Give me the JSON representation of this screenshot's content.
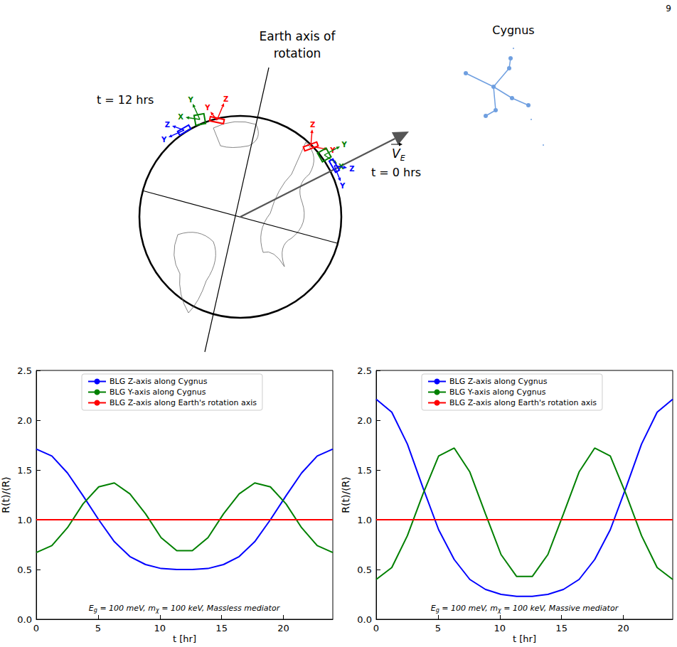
{
  "page_number": "9",
  "diagram": {
    "time_labels": [
      "t = 12 hrs",
      "t = 0 hrs"
    ],
    "axis_label": "Earth axis of rotation",
    "constellation": "Cygnus",
    "velocity_label": "VE",
    "frames": [
      {
        "color": "#ff0000",
        "axes": [
          "Z",
          "Y"
        ]
      },
      {
        "color": "#008000",
        "axes": [
          "Y",
          "X"
        ]
      },
      {
        "color": "#0000ff",
        "axes": [
          "Z",
          "Y"
        ]
      }
    ]
  },
  "chart_data": [
    {
      "type": "line",
      "annotation": "Eg = 100 meV, mχ = 100 keV, Massless mediator",
      "xlabel": "t [hr]",
      "ylabel": "R(t)/⟨R⟩",
      "xlim": [
        0,
        24
      ],
      "xticks": [
        0,
        5,
        10,
        15,
        20
      ],
      "ylim": [
        0,
        2.5
      ],
      "yticks": [
        {
          "value": 0,
          "label": "0.0"
        },
        0.5,
        {
          "value": 1,
          "label": "1.0"
        },
        1.5,
        {
          "value": 2,
          "label": "2.0"
        },
        2.5
      ],
      "legend": "upper center",
      "grid": false,
      "x": [
        0,
        1.263,
        2.526,
        3.789,
        5.053,
        6.316,
        7.579,
        8.842,
        10.105,
        11.368,
        12.632,
        13.895,
        15.158,
        16.421,
        17.684,
        18.947,
        20.211,
        21.474,
        22.737,
        24
      ],
      "series": [
        {
          "name": "BLG Z-axis along Cygnus",
          "color": "#0000ff",
          "values": [
            1.71,
            1.64,
            1.47,
            1.24,
            1.0,
            0.78,
            0.63,
            0.55,
            0.51,
            0.5,
            0.5,
            0.51,
            0.55,
            0.63,
            0.78,
            1.0,
            1.24,
            1.47,
            1.64,
            1.71
          ]
        },
        {
          "name": "BLG Y-axis along Cygnus",
          "color": "#008000",
          "values": [
            0.67,
            0.74,
            0.92,
            1.16,
            1.33,
            1.37,
            1.26,
            1.06,
            0.82,
            0.69,
            0.69,
            0.82,
            1.06,
            1.26,
            1.37,
            1.33,
            1.16,
            0.92,
            0.74,
            0.67
          ]
        },
        {
          "name": "BLG Z-axis along Earth's rotation axis",
          "color": "#ff0000",
          "values": [
            1.0,
            1.0,
            1.0,
            1.0,
            1.0,
            1.0,
            1.0,
            1.0,
            1.0,
            1.0,
            1.0,
            1.0,
            1.0,
            1.0,
            1.0,
            1.0,
            1.0,
            1.0,
            1.0,
            1.0
          ]
        }
      ]
    },
    {
      "type": "line",
      "annotation": "Eg = 100 meV, mχ = 100 keV, Massive mediator",
      "xlabel": "t [hr]",
      "ylabel": "R(t)/⟨R⟩",
      "xlim": [
        0,
        24
      ],
      "xticks": [
        0,
        5,
        10,
        15,
        20
      ],
      "ylim": [
        0,
        2.5
      ],
      "yticks": [
        {
          "value": 0,
          "label": "0.0"
        },
        0.5,
        {
          "value": 1,
          "label": "1.0"
        },
        1.5,
        {
          "value": 2,
          "label": "2.0"
        },
        2.5
      ],
      "legend": "upper center",
      "grid": false,
      "x": [
        0,
        1.263,
        2.526,
        3.789,
        5.053,
        6.316,
        7.579,
        8.842,
        10.105,
        11.368,
        12.632,
        13.895,
        15.158,
        16.421,
        17.684,
        18.947,
        20.211,
        21.474,
        22.737,
        24
      ],
      "series": [
        {
          "name": "BLG Z-axis along Cygnus",
          "color": "#0000ff",
          "values": [
            2.21,
            2.08,
            1.76,
            1.32,
            0.9,
            0.6,
            0.4,
            0.3,
            0.25,
            0.23,
            0.23,
            0.25,
            0.3,
            0.4,
            0.6,
            0.9,
            1.32,
            1.76,
            2.08,
            2.21
          ]
        },
        {
          "name": "BLG Y-axis along Cygnus",
          "color": "#008000",
          "values": [
            0.4,
            0.52,
            0.84,
            1.26,
            1.64,
            1.72,
            1.48,
            1.06,
            0.65,
            0.43,
            0.43,
            0.65,
            1.06,
            1.48,
            1.72,
            1.64,
            1.26,
            0.84,
            0.52,
            0.4
          ]
        },
        {
          "name": "BLG Z-axis along Earth's rotation axis",
          "color": "#ff0000",
          "values": [
            1.0,
            1.0,
            1.0,
            1.0,
            1.0,
            1.0,
            1.0,
            1.0,
            1.0,
            1.0,
            1.0,
            1.0,
            1.0,
            1.0,
            1.0,
            1.0,
            1.0,
            1.0,
            1.0,
            1.0
          ]
        }
      ]
    }
  ]
}
